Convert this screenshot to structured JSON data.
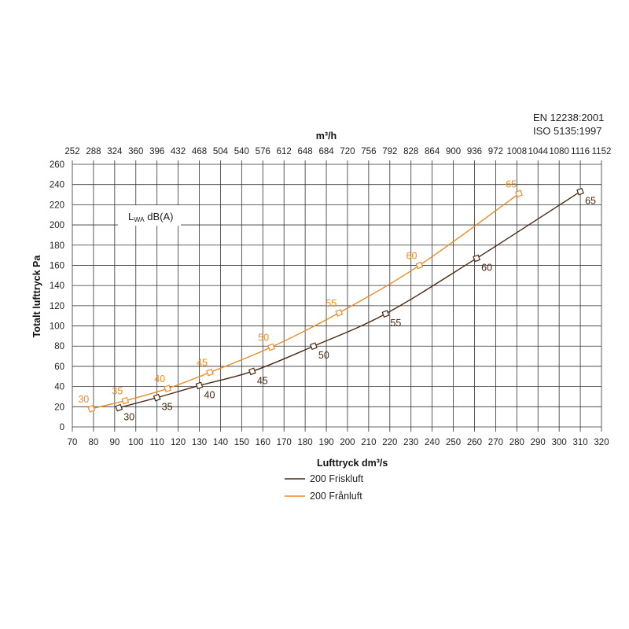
{
  "colors": {
    "series_1": "#4a2a14",
    "series_2": "#f08a24",
    "grid": "#333333",
    "text": "#222222"
  },
  "chart_data": {
    "type": "line",
    "title": "",
    "standards": [
      "EN 12238:2001",
      "ISO 5135:1997"
    ],
    "xlabel": "Lufttryck dm³/s",
    "x2label": "m³/h",
    "ylabel": "Totalt lufttryck Pa",
    "annotation": {
      "main": "L",
      "sub": "WA",
      "rest": " dB(A)"
    },
    "xlim": [
      70,
      320
    ],
    "ylim": [
      0,
      260
    ],
    "grid": true,
    "legend_position": "bottom",
    "x_ticks": [
      70,
      80,
      90,
      100,
      110,
      120,
      130,
      140,
      150,
      160,
      170,
      180,
      190,
      200,
      210,
      220,
      230,
      240,
      250,
      260,
      270,
      280,
      290,
      300,
      310,
      320
    ],
    "x2_ticks": [
      252,
      288,
      324,
      360,
      396,
      432,
      468,
      504,
      540,
      576,
      612,
      648,
      684,
      720,
      756,
      792,
      828,
      864,
      900,
      936,
      972,
      1008,
      1044,
      1080,
      1116,
      1152
    ],
    "y_ticks": [
      0,
      20,
      40,
      60,
      80,
      100,
      120,
      140,
      160,
      180,
      200,
      220,
      240,
      260
    ],
    "series": [
      {
        "name": "200 Friskluft",
        "color": "#4a2a14",
        "points": [
          {
            "x": 92,
            "y": 19,
            "label": "30"
          },
          {
            "x": 110,
            "y": 29,
            "label": "35"
          },
          {
            "x": 130,
            "y": 41,
            "label": "40"
          },
          {
            "x": 155,
            "y": 55,
            "label": "45"
          },
          {
            "x": 184,
            "y": 80,
            "label": "50"
          },
          {
            "x": 218,
            "y": 112,
            "label": "55"
          },
          {
            "x": 261,
            "y": 167,
            "label": "60"
          },
          {
            "x": 310,
            "y": 233,
            "label": "65"
          }
        ]
      },
      {
        "name": "200 Frånluft",
        "color": "#f08a24",
        "points": [
          {
            "x": 79,
            "y": 18,
            "label": "30"
          },
          {
            "x": 95,
            "y": 26,
            "label": "35"
          },
          {
            "x": 115,
            "y": 38,
            "label": "40"
          },
          {
            "x": 135,
            "y": 54,
            "label": "45"
          },
          {
            "x": 164,
            "y": 79,
            "label": "50"
          },
          {
            "x": 196,
            "y": 113,
            "label": "55"
          },
          {
            "x": 234,
            "y": 160,
            "label": "60"
          },
          {
            "x": 281,
            "y": 231,
            "label": "65"
          }
        ]
      }
    ]
  }
}
